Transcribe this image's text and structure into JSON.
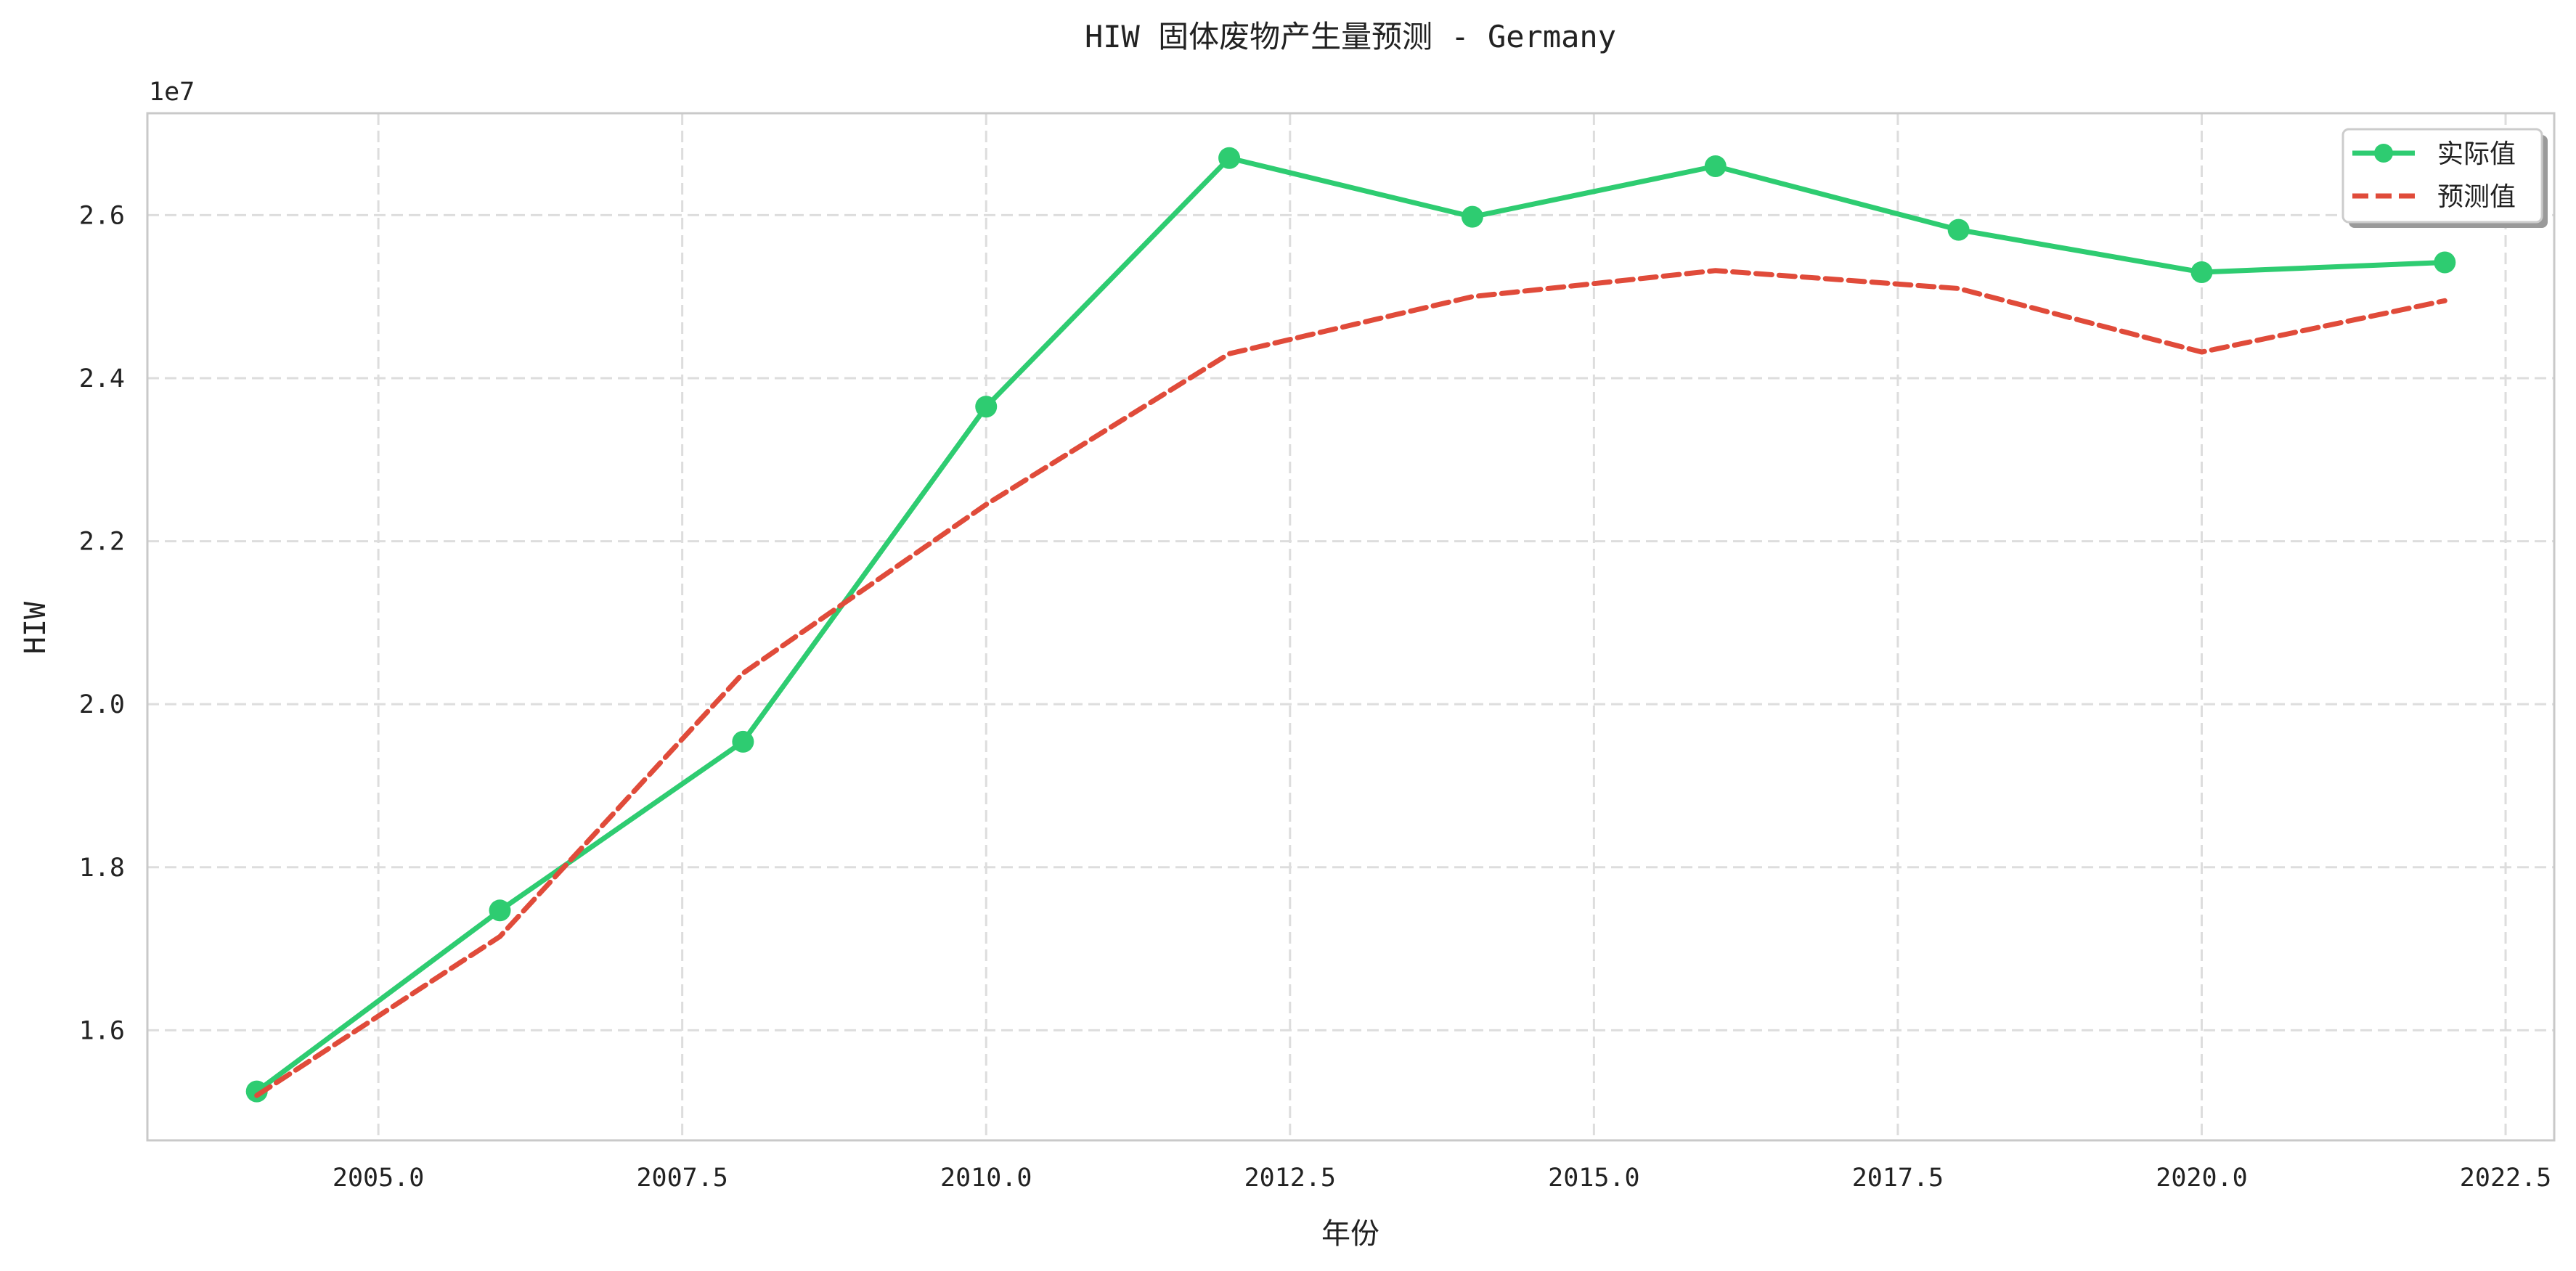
{
  "chart_data": {
    "type": "line",
    "title": "HIW 固体废物产生量预测 - Germany",
    "xlabel": "年份",
    "ylabel": "HIW",
    "y_offset_label": "1e7",
    "xlim": [
      2003.1,
      2022.9
    ],
    "ylim": [
      14.65,
      27.25
    ],
    "xticks": [
      2005.0,
      2007.5,
      2010.0,
      2012.5,
      2015.0,
      2017.5,
      2020.0,
      2022.5
    ],
    "xtick_labels": [
      "2005.0",
      "2007.5",
      "2010.0",
      "2012.5",
      "2015.0",
      "2017.5",
      "2020.0",
      "2022.5"
    ],
    "yticks": [
      16,
      18,
      20,
      22,
      24,
      26
    ],
    "ytick_labels": [
      "1.6",
      "1.8",
      "2.0",
      "2.2",
      "2.4",
      "2.6"
    ],
    "grid": true,
    "legend_position": "top-right",
    "x": [
      2004,
      2006,
      2008,
      2010,
      2012,
      2014,
      2016,
      2018,
      2020,
      2022
    ],
    "series": [
      {
        "name": "实际值",
        "style": "solid-with-markers",
        "color": "#2ecc71",
        "values": [
          15.25,
          17.47,
          19.54,
          23.65,
          26.7,
          25.98,
          26.6,
          25.82,
          25.3,
          25.42
        ]
      },
      {
        "name": "预测值",
        "style": "dashed",
        "color": "#e04b3a",
        "x": [
          2004,
          2006,
          2008,
          2010,
          2012,
          2014,
          2016,
          2018,
          2020,
          2022
        ],
        "values": [
          15.2,
          17.15,
          20.38,
          22.45,
          24.3,
          25.0,
          25.32,
          25.1,
          24.32,
          24.95
        ]
      }
    ]
  }
}
